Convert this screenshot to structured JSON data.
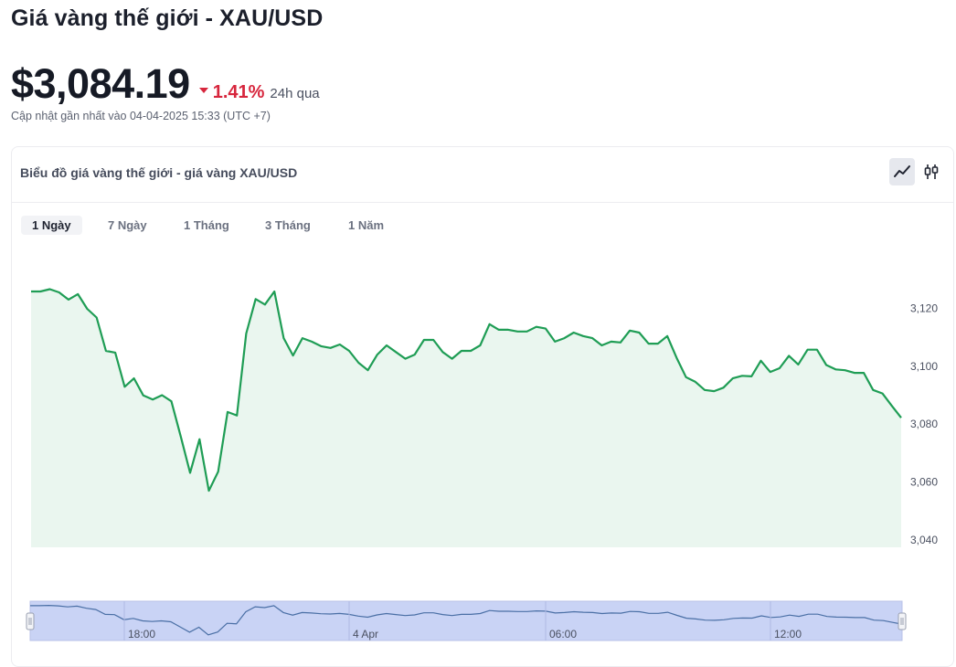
{
  "header": {
    "title": "Giá vàng thế giới - XAU/USD",
    "price": "$3,084.19",
    "change_pct": "1.41%",
    "change_direction": "down",
    "period": "24h qua",
    "updated": "Cập nhật gần nhất vào 04-04-2025 15:33 (UTC +7)"
  },
  "card": {
    "title": "Biểu đồ giá vàng thế giới - giá vàng XAU/USD",
    "chart_types": [
      {
        "name": "line",
        "active": true,
        "icon": "line-chart-icon"
      },
      {
        "name": "candlestick",
        "active": false,
        "icon": "candlestick-icon"
      }
    ],
    "ranges": [
      {
        "label": "1 Ngày",
        "active": true
      },
      {
        "label": "7 Ngày",
        "active": false
      },
      {
        "label": "1 Tháng",
        "active": false
      },
      {
        "label": "3 Tháng",
        "active": false
      },
      {
        "label": "1 Năm",
        "active": false
      }
    ]
  },
  "colors": {
    "line": "#1f9d55",
    "area": "#eaf6ef",
    "down": "#d7263d",
    "navigator_fill": "#c9d3f5",
    "navigator_line": "#4a6fa5"
  },
  "chart_data": {
    "type": "area",
    "title": "",
    "xlabel": "",
    "ylabel": "",
    "ylim": [
      3040,
      3130
    ],
    "y_ticks": [
      3040,
      3060,
      3080,
      3100,
      3120
    ],
    "y_tick_labels": [
      "3,040",
      "3,060",
      "3,080",
      "3,100",
      "3,120"
    ],
    "x_tick_labels": [
      "18:00",
      "4 Apr",
      "06:00",
      "12:00"
    ],
    "grid": false,
    "series": [
      {
        "values": [
          3125.8,
          3125.8,
          3126.6,
          3125.5,
          3123.0,
          3124.9,
          3119.8,
          3116.8,
          3105.3,
          3104.7,
          3092.9,
          3095.8,
          3089.9,
          3088.5,
          3090.0,
          3087.9,
          3075.7,
          3063.2,
          3074.8,
          3057.0,
          3063.6,
          3084.2,
          3083.0,
          3111.3,
          3123.2,
          3121.3,
          3125.8,
          3109.7,
          3103.7,
          3109.7,
          3108.5,
          3106.9,
          3106.3,
          3107.5,
          3105.3,
          3101.2,
          3098.6,
          3104.0,
          3107.2,
          3104.9,
          3102.6,
          3104.0,
          3109.1,
          3109.1,
          3104.9,
          3102.6,
          3105.3,
          3105.3,
          3107.2,
          3114.5,
          3112.6,
          3112.6,
          3112.0,
          3112.0,
          3113.6,
          3113.0,
          3108.5,
          3109.7,
          3111.6,
          3110.4,
          3109.7,
          3107.2,
          3108.5,
          3108.2,
          3112.3,
          3111.6,
          3107.8,
          3107.8,
          3110.4,
          3102.9,
          3096.2,
          3094.6,
          3091.8,
          3091.4,
          3092.6,
          3095.8,
          3096.7,
          3096.5,
          3101.9,
          3098.0,
          3099.3,
          3103.6,
          3100.6,
          3105.7,
          3105.7,
          3100.4,
          3098.9,
          3098.6,
          3097.7,
          3097.7,
          3091.8,
          3090.6,
          3086.3,
          3082.2
        ],
        "color": "#1f9d55"
      }
    ]
  }
}
